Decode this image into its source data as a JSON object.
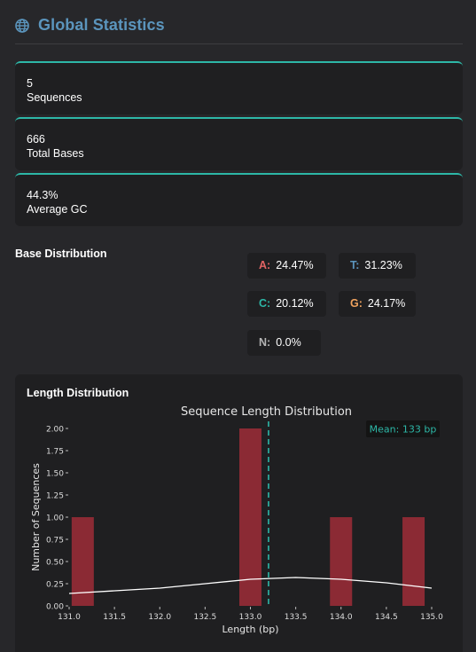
{
  "header": {
    "title": "Global Statistics",
    "icon": "globe-icon",
    "accent": "#5b95bd"
  },
  "stats": [
    {
      "value": "5",
      "label": "Sequences"
    },
    {
      "value": "666",
      "label": "Total Bases"
    },
    {
      "value": "44.3%",
      "label": "Average GC"
    }
  ],
  "base_distribution": {
    "title": "Base Distribution",
    "items": [
      {
        "key": "A:",
        "value": "24.47%",
        "color": "#e36464"
      },
      {
        "key": "T:",
        "value": "31.23%",
        "color": "#5b95bd"
      },
      {
        "key": "C:",
        "value": "20.12%",
        "color": "#2db7a7"
      },
      {
        "key": "G:",
        "value": "24.17%",
        "color": "#f0a35e"
      },
      {
        "key": "N:",
        "value": "0.0%",
        "color": "#b4b4b4"
      }
    ]
  },
  "length_distribution": {
    "section_title": "Length Distribution",
    "chart_data": {
      "type": "bar",
      "title": "Sequence Length Distribution",
      "xlabel": "Length (bp)",
      "ylabel": "Number of Sequences",
      "xlim": [
        131.0,
        135.0
      ],
      "ylim": [
        0,
        2.0
      ],
      "xticks": [
        "131.0",
        "131.5",
        "132.0",
        "132.5",
        "133.0",
        "133.5",
        "134.0",
        "134.5",
        "135.0"
      ],
      "yticks": [
        "0.00",
        "0.25",
        "0.50",
        "0.75",
        "1.00",
        "1.25",
        "1.50",
        "1.75",
        "2.00"
      ],
      "bars": [
        {
          "x": 131.15,
          "value": 1
        },
        {
          "x": 133.0,
          "value": 2
        },
        {
          "x": 134.0,
          "value": 1
        },
        {
          "x": 134.8,
          "value": 1
        }
      ],
      "bar_color": "#8b2a34",
      "mean": 133.2,
      "mean_label": "Mean: 133 bp",
      "mean_color": "#2db7a7",
      "kde": [
        [
          131.0,
          0.14
        ],
        [
          131.5,
          0.17
        ],
        [
          132.0,
          0.2
        ],
        [
          132.5,
          0.25
        ],
        [
          133.0,
          0.3
        ],
        [
          133.5,
          0.32
        ],
        [
          134.0,
          0.3
        ],
        [
          134.5,
          0.26
        ],
        [
          135.0,
          0.2
        ]
      ],
      "grid": false
    }
  }
}
